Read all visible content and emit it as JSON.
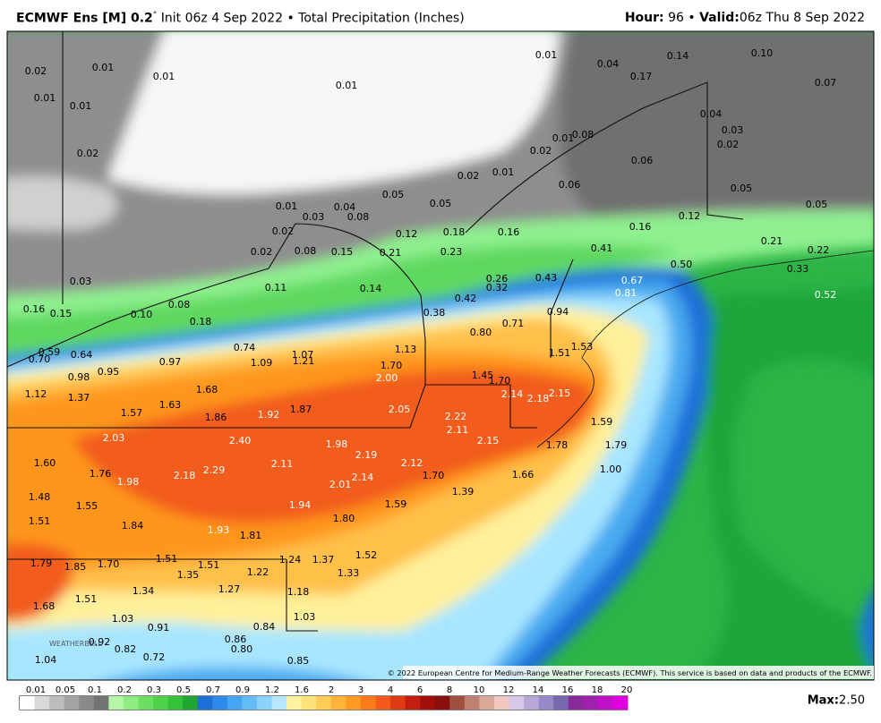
{
  "header": {
    "model": "ECMWF Ens [M] 0.2",
    "degree": "°",
    "description": "Init 06z 4 Sep 2022 • Total Precipitation (Inches)",
    "hour_label": "Hour:",
    "hour": "96",
    "separator": "•",
    "valid_label": "Valid:",
    "valid": "06z Thu 8 Sep 2022"
  },
  "map": {
    "labels": [
      "0.02",
      "0.01",
      "0.01",
      "0.01",
      "0.01",
      "0.01",
      "0.02",
      "0.01",
      "0.04",
      "0.14",
      "0.10",
      "0.17",
      "0.07",
      "0.04",
      "0.03",
      "0.02",
      "0.08",
      "0.01",
      "0.02",
      "0.06",
      "0.02",
      "0.01",
      "0.06",
      "0.05",
      "0.05",
      "0.05",
      "0.01",
      "0.04",
      "0.03",
      "0.08",
      "0.05",
      "0.12",
      "0.02",
      "0.12",
      "0.18",
      "0.16",
      "0.16",
      "0.21",
      "0.22",
      "0.02",
      "0.08",
      "0.15",
      "0.21",
      "0.23",
      "0.41",
      "0.50",
      "0.33",
      "0.03",
      "0.11",
      "0.14",
      "0.26",
      "0.32",
      "0.43",
      "0.67",
      "0.81",
      "0.52",
      "0.16",
      "0.15",
      "0.10",
      "0.08",
      "0.18",
      "0.38",
      "0.42",
      "0.94",
      "0.71",
      "0.80",
      "1.13",
      "0.74",
      "1.53",
      "0.59",
      "0.64",
      "0.70",
      "0.97",
      "1.09",
      "1.07",
      "1.21",
      "1.51",
      "1.70",
      "1.45",
      "1.70",
      "0.98",
      "0.95",
      "2.00",
      "1.12",
      "1.37",
      "1.68",
      "2.14",
      "2.18",
      "2.15",
      "1.63",
      "1.57",
      "1.86",
      "1.92",
      "1.87",
      "2.05",
      "2.22",
      "1.59",
      "2.11",
      "2.03",
      "2.40",
      "1.98",
      "2.15",
      "1.78",
      "1.79",
      "2.19",
      "1.60",
      "2.12",
      "1.00",
      "1.76",
      "2.18",
      "2.29",
      "2.11",
      "1.70",
      "1.66",
      "1.98",
      "2.01",
      "2.14",
      "1.39",
      "1.48",
      "1.55",
      "1.94",
      "1.59",
      "1.80",
      "1.51",
      "1.84",
      "1.93",
      "1.81",
      "1.52",
      "1.79",
      "1.85",
      "1.70",
      "1.51",
      "1.51",
      "1.24",
      "1.37",
      "1.35",
      "1.22",
      "1.33",
      "1.34",
      "1.27",
      "1.18",
      "1.51",
      "1.68",
      "1.03",
      "0.91",
      "1.03",
      "0.84",
      "0.86",
      "0.92",
      "0.82",
      "0.80",
      "0.72",
      "1.04",
      "0.85"
    ],
    "logo": "WEATHERBELL",
    "copyright": "© 2022 European Centre for Medium-Range Weather Forecasts (ECMWF). This service is based on data and products of the ECMWF."
  },
  "legend": {
    "ticks": [
      "0.01",
      "0.05",
      "0.1",
      "0.2",
      "0.3",
      "0.5",
      "0.7",
      "0.9",
      "1.2",
      "1.6",
      "2",
      "3",
      "4",
      "6",
      "8",
      "10",
      "12",
      "14",
      "16",
      "18",
      "20"
    ]
  },
  "footer": {
    "max_label": "Max:",
    "max_value": "2.50"
  }
}
